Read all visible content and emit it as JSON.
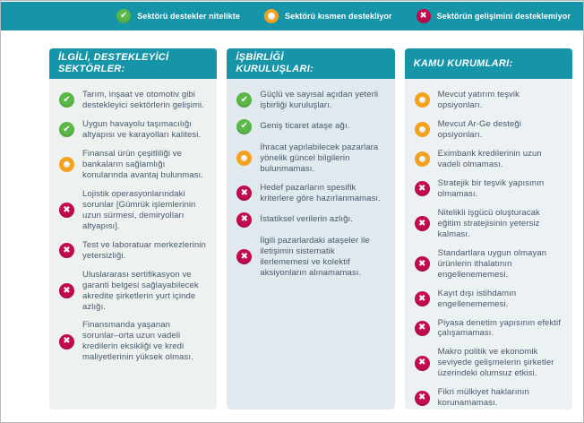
{
  "colors": {
    "teal": "#1795a8",
    "status_supports": "#5bb847",
    "status_partial": "#f5a120",
    "status_not": "#c30b50",
    "body_text": "#47586b",
    "panel_bg_1": "#edf2f0",
    "panel_bg_2": "#dfe9ee",
    "panel_bg_3": "#ecf1f3"
  },
  "legend": {
    "items": [
      {
        "status": "supports",
        "icon": "check-icon",
        "label": "Sektörü destekler nitelikte"
      },
      {
        "status": "partial",
        "icon": "partial-circle-icon",
        "label": "Sektörü kısmen destekliyor"
      },
      {
        "status": "not",
        "icon": "x-icon",
        "label": "Sektörün gelişimini desteklemiyor"
      }
    ]
  },
  "columns": [
    {
      "id": "ilgili-destekleyici-sektorler",
      "title": "İLGİLİ, DESTEKLEYİCİ\nSEKTÖRLER:",
      "bg": "#edf2f0",
      "items": [
        {
          "status": "supports",
          "text": "Tarım, inşaat ve otomotiv gibi destekleyici sektörlerin gelişimi."
        },
        {
          "status": "supports",
          "text": "Uygun havayolu taşımacılığı altyapısı ve karayolları kalitesi."
        },
        {
          "status": "partial",
          "text": "Finansal ürün çeşitliliği ve bankaların sağlamlığı konularında avantaj bulunması."
        },
        {
          "status": "not",
          "text": "Lojistik operasyonlarındaki sorunlar [Gümrük işlemlerinin uzun sürmesi, demiryolları altyapısı]."
        },
        {
          "status": "not",
          "text": "Test ve laboratuar merkezlerinin yetersizliği."
        },
        {
          "status": "not",
          "text": "Uluslararası sertifikasyon ve garanti belgesi sağlayabilecek akredite şirketlerin yurt içinde azlığı."
        },
        {
          "status": "not",
          "text": "Finansmanda yaşanan sorunlar–orta uzun vadeli kredilerin eksikliği ve kredi maliyetlerinin yüksek olması."
        }
      ]
    },
    {
      "id": "isbirligi-kuruluslari",
      "title": "İŞBİRLİĞİ\nKURULUŞLARI:",
      "bg": "#dfe9ee",
      "items": [
        {
          "status": "supports",
          "text": "Güçlü ve sayısal açıdan yeterli işbirliği kuruluşları."
        },
        {
          "status": "supports",
          "text": "Geniş ticaret ataşe ağı."
        },
        {
          "status": "partial",
          "text": "İhracat yapılabilecek pazarlara yönelik güncel bilgilerin bulunmaması."
        },
        {
          "status": "not",
          "text": "Hedef pazarların spesifik kriterlere göre hazırlanmaması."
        },
        {
          "status": "not",
          "text": "İstatiksel verilerin azlığı."
        },
        {
          "status": "not",
          "text": "İlgili pazarlardaki ataşeler ile iletişimin sistematik ilerlememesi ve kolektif aksiyonların alınamaması."
        }
      ]
    },
    {
      "id": "kamu-kurumlari",
      "title": "KAMU KURUMLARI:",
      "bg": "#ecf1f3",
      "items": [
        {
          "status": "partial",
          "text": "Mevcut yatırım teşvik opsiyonları."
        },
        {
          "status": "partial",
          "text": "Mevcut Ar-Ge desteği opsiyonları."
        },
        {
          "status": "partial",
          "text": "Eximbank kredilerinin uzun vadeli olmaması."
        },
        {
          "status": "not",
          "text": "Stratejik bir teşvik yapısının olmaması."
        },
        {
          "status": "not",
          "text": "Nitelikli işgücü oluşturacak eğitim stratejisinin yetersiz kalması."
        },
        {
          "status": "not",
          "text": "Standartlara uygun olmayan ürünlerin ithalatının engellenememesi."
        },
        {
          "status": "not",
          "text": "Kayıt dışı istihdamın engellenememesi."
        },
        {
          "status": "not",
          "text": "Piyasa denetim yapısının efektif çalışamaması."
        },
        {
          "status": "not",
          "text": "Makro politik ve ekonomik seviyede gelişmelerin şirketler üzerindeki olumsuz etkisi."
        },
        {
          "status": "not",
          "text": "Fikri mülkiyet haklarının korunamaması."
        }
      ]
    }
  ]
}
